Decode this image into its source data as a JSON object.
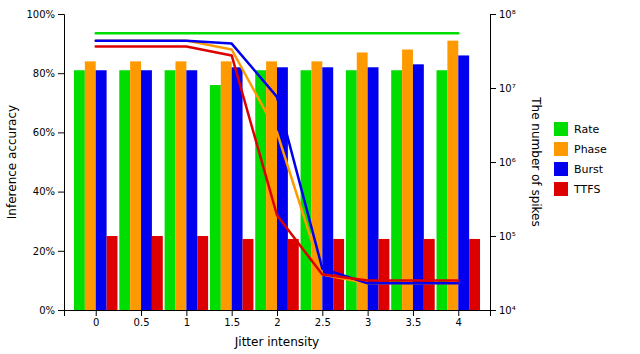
{
  "chart_data": {
    "type": "bar",
    "xlabel": "Jitter intensity",
    "ylabel": "Inference accuracy",
    "y2label": "The number of spikes",
    "x": [
      0,
      0.5,
      1,
      1.5,
      2,
      2.5,
      3,
      3.5,
      4
    ],
    "xlim": [
      -0.35,
      4.35
    ],
    "xticks": [
      0,
      0.5,
      1,
      1.5,
      2,
      2.5,
      3,
      3.5,
      4
    ],
    "ylim": [
      0,
      1.0
    ],
    "yticks": [
      {
        "value": 0,
        "label": "0%"
      },
      {
        "value": 0.2,
        "label": "20%"
      },
      {
        "value": 0.4,
        "label": "40%"
      },
      {
        "value": 0.6,
        "label": "60%"
      },
      {
        "value": 0.8,
        "label": "80%"
      },
      {
        "value": 1.0,
        "label": "100%"
      }
    ],
    "y2lim": [
      10000,
      100000000
    ],
    "y2ticks": [
      {
        "value": 10000,
        "label": "10⁴"
      },
      {
        "value": 100000,
        "label": "10⁵"
      },
      {
        "value": 1000000,
        "label": "10⁶"
      },
      {
        "value": 10000000,
        "label": "10⁷"
      },
      {
        "value": 100000000,
        "label": "10⁸"
      }
    ],
    "log": "y2",
    "grid": false,
    "legend": "right",
    "series": [
      {
        "name": "Rate",
        "type": "bar",
        "color": "#00dd00",
        "values": [
          0.81,
          0.81,
          0.81,
          0.76,
          0.81,
          0.81,
          0.81,
          0.81,
          0.81
        ]
      },
      {
        "name": "Phase",
        "type": "bar",
        "color": "#ff9900",
        "values": [
          0.84,
          0.84,
          0.84,
          0.84,
          0.84,
          0.84,
          0.87,
          0.88,
          0.91
        ]
      },
      {
        "name": "Burst",
        "type": "bar",
        "color": "#0000ee",
        "values": [
          0.81,
          0.81,
          0.81,
          0.82,
          0.82,
          0.82,
          0.82,
          0.83,
          0.86
        ]
      },
      {
        "name": "TTFS",
        "type": "bar",
        "color": "#dd0000",
        "values": [
          0.25,
          0.25,
          0.25,
          0.24,
          0.24,
          0.24,
          0.24,
          0.24,
          0.24
        ]
      },
      {
        "name": "Rate",
        "type": "line",
        "color": "#00dd00",
        "values": [
          0.935,
          0.935,
          0.935,
          0.935,
          0.935,
          0.935,
          0.935,
          0.935,
          0.935
        ]
      },
      {
        "name": "Phase",
        "type": "line",
        "color": "#ff9900",
        "values": [
          0.91,
          0.91,
          0.91,
          0.88,
          0.6,
          0.12,
          0.09,
          0.09,
          0.09
        ]
      },
      {
        "name": "Burst",
        "type": "line",
        "color": "#0000ee",
        "values": [
          0.91,
          0.91,
          0.91,
          0.9,
          0.72,
          0.14,
          0.09,
          0.09,
          0.09
        ]
      },
      {
        "name": "TTFS",
        "type": "line",
        "color": "#dd0000",
        "values": [
          0.89,
          0.89,
          0.89,
          0.86,
          0.32,
          0.12,
          0.1,
          0.1,
          0.1
        ]
      }
    ]
  }
}
